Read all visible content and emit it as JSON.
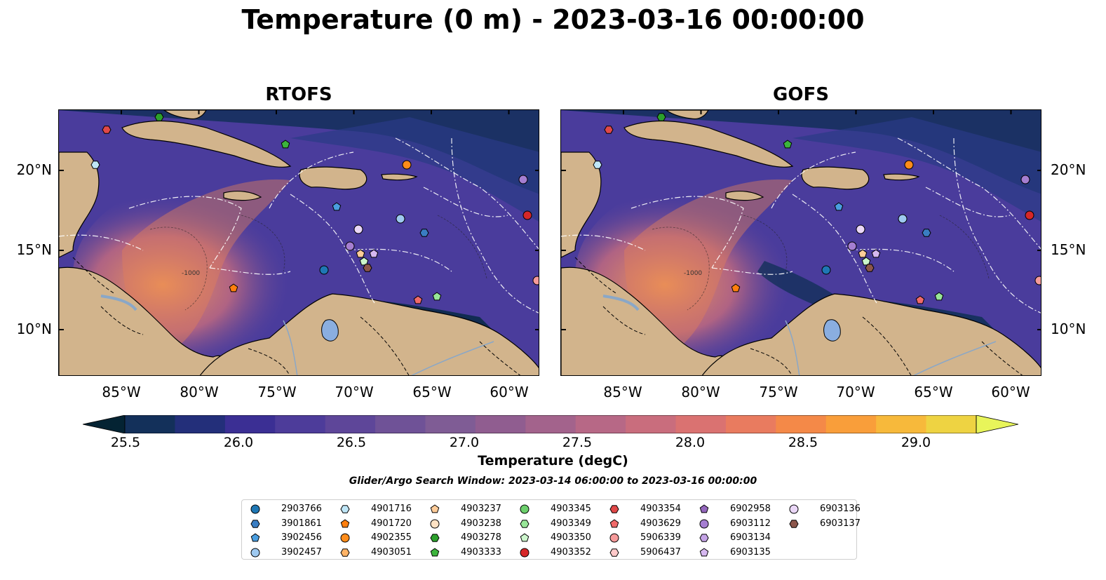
{
  "title": "Temperature (0 m) - 2023-03-16 00:00:00",
  "panels": [
    {
      "title": "RTOFS"
    },
    {
      "title": "GOFS"
    }
  ],
  "map": {
    "lon_range": [
      -89,
      -58
    ],
    "lat_range": [
      7,
      24
    ],
    "lon_ticks": [
      "85°W",
      "80°W",
      "75°W",
      "70°W",
      "65°W",
      "60°W"
    ],
    "lat_ticks": [
      "20°N",
      "15°N",
      "10°N"
    ],
    "bathymetry_contour_label": "-1000"
  },
  "colorbar": {
    "label": "Temperature (degC)",
    "ticks": [
      "25.5",
      "26.0",
      "26.5",
      "27.0",
      "27.5",
      "28.0",
      "28.5",
      "29.0"
    ],
    "range": [
      25.25,
      29.25
    ],
    "extend": "both",
    "colors": [
      "#042333",
      "#13305a",
      "#232f7a",
      "#3b2f94",
      "#4d3c9a",
      "#5e4699",
      "#6f5297",
      "#7f5c95",
      "#905d90",
      "#a3638c",
      "#b76886",
      "#c96d7d",
      "#da7271",
      "#e97b5f",
      "#f48948",
      "#f99e3a",
      "#f7b93b",
      "#eed342",
      "#e8f55a"
    ]
  },
  "search_window": "Glider/Argo Search Window: 2023-03-14 06:00:00 to 2023-03-16 00:00:00",
  "legend": [
    {
      "label": "2903766",
      "marker": "circle",
      "color": "#1f77b4"
    },
    {
      "label": "3901861",
      "marker": "hexagon",
      "color": "#3a7dc2"
    },
    {
      "label": "3902456",
      "marker": "pentagon",
      "color": "#4a9ee0"
    },
    {
      "label": "3902457",
      "marker": "circle",
      "color": "#9ec9f0"
    },
    {
      "label": "4901716",
      "marker": "hexagon",
      "color": "#bfe6f7"
    },
    {
      "label": "4901720",
      "marker": "pentagon",
      "color": "#ff7f0e"
    },
    {
      "label": "4902355",
      "marker": "circle",
      "color": "#ff8c1a"
    },
    {
      "label": "4903051",
      "marker": "hexagon",
      "color": "#ffb366"
    },
    {
      "label": "4903237",
      "marker": "pentagon",
      "color": "#ffcc99"
    },
    {
      "label": "4903238",
      "marker": "circle",
      "color": "#ffe2c4"
    },
    {
      "label": "4903278",
      "marker": "hexagon",
      "color": "#2ca02c"
    },
    {
      "label": "4903333",
      "marker": "pentagon",
      "color": "#3cb43c"
    },
    {
      "label": "4903345",
      "marker": "circle",
      "color": "#6ccf6c"
    },
    {
      "label": "4903349",
      "marker": "hexagon",
      "color": "#98e698"
    },
    {
      "label": "4903350",
      "marker": "pentagon",
      "color": "#ccf5cc"
    },
    {
      "label": "4903352",
      "marker": "circle",
      "color": "#d62728"
    },
    {
      "label": "4903354",
      "marker": "hexagon",
      "color": "#e04848"
    },
    {
      "label": "4903629",
      "marker": "pentagon",
      "color": "#f06a6a"
    },
    {
      "label": "5906339",
      "marker": "circle",
      "color": "#f59a9a"
    },
    {
      "label": "5906437",
      "marker": "hexagon",
      "color": "#ffc9c9"
    },
    {
      "label": "6902958",
      "marker": "pentagon",
      "color": "#9467bd"
    },
    {
      "label": "6903112",
      "marker": "circle",
      "color": "#a57ed1"
    },
    {
      "label": "6903134",
      "marker": "hexagon",
      "color": "#c4a3e6"
    },
    {
      "label": "6903135",
      "marker": "pentagon",
      "color": "#d6b8f0"
    },
    {
      "label": "6903136",
      "marker": "circle",
      "color": "#ead7f7"
    },
    {
      "label": "6903137",
      "marker": "hexagon",
      "color": "#8c564b"
    }
  ]
}
